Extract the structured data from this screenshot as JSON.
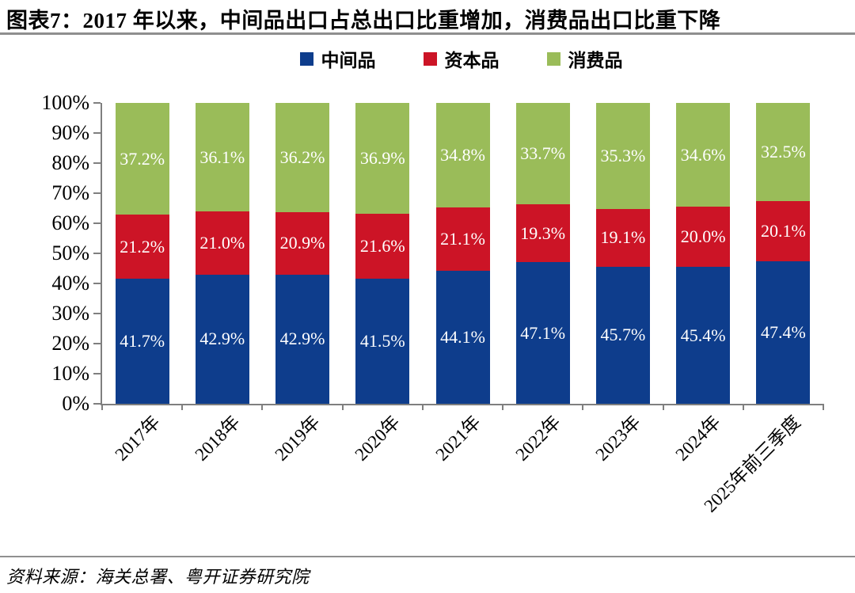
{
  "title": "图表7：2017 年以来，中间品出口占总出口比重增加，消费品出口比重下降",
  "source": "资料来源：海关总署、粤开证券研究院",
  "colors": {
    "intermediate_blue": "#0E3D8C",
    "capital_red": "#CC1426",
    "consumer_green": "#9ABC59",
    "axis_gray": "#7f7f7f",
    "rule_gray": "#8f8f8f",
    "label_white": "#ffffff"
  },
  "chart_data": {
    "type": "bar",
    "stacked": true,
    "percent_stacked": true,
    "title": "图表7：2017 年以来，中间品出口占总出口比重增加，消费品出口比重下降",
    "categories": [
      "2017年",
      "2018年",
      "2019年",
      "2020年",
      "2021年",
      "2022年",
      "2023年",
      "2024年",
      "2025年前三季度"
    ],
    "series": [
      {
        "name": "中间品",
        "color": "#0E3D8C",
        "values": [
          41.7,
          42.9,
          42.9,
          41.5,
          44.1,
          47.1,
          45.7,
          45.4,
          47.4
        ]
      },
      {
        "name": "资本品",
        "color": "#CC1426",
        "values": [
          21.2,
          21.0,
          20.9,
          21.6,
          21.1,
          19.3,
          19.1,
          20.0,
          20.1
        ]
      },
      {
        "name": "消费品",
        "color": "#9ABC59",
        "values": [
          37.2,
          36.1,
          36.2,
          36.9,
          34.8,
          33.7,
          35.3,
          34.6,
          32.5
        ]
      }
    ],
    "data_label_format": "0.0%",
    "yticks": [
      "100%",
      "90%",
      "80%",
      "70%",
      "60%",
      "50%",
      "40%",
      "30%",
      "20%",
      "10%",
      "0%"
    ],
    "ylim": [
      0,
      100
    ],
    "grid": false,
    "legend_position": "top",
    "xlabel": "",
    "ylabel": ""
  }
}
